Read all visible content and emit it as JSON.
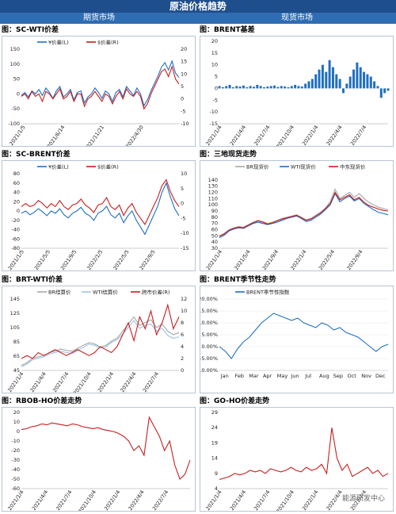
{
  "header": {
    "title": "原油价格趋势",
    "left_col": "期货市场",
    "right_col": "现货市场"
  },
  "watermark": "能源研发中心",
  "chart_data": [
    {
      "id": "sc_wti",
      "type": "line",
      "title": "图：SC-WTI价差",
      "xticks": [
        "2021/1/5",
        "2021/6/14",
        "2021/11/21",
        "2022/4/30"
      ],
      "yticks_left": [
        -100,
        -50,
        0,
        50,
        100,
        150
      ],
      "yticks_right": [
        -10,
        -5,
        0,
        5,
        10,
        15,
        20
      ],
      "ylim_left": [
        -100,
        150
      ],
      "ylim_right": [
        -10,
        20
      ],
      "series": [
        {
          "name": "¥价差(L)",
          "color": "#1f6fc1",
          "axis": "left",
          "values": [
            -5,
            5,
            -10,
            10,
            0,
            15,
            -5,
            20,
            5,
            -15,
            10,
            25,
            -10,
            0,
            15,
            -20,
            5,
            10,
            -30,
            -10,
            0,
            20,
            5,
            -15,
            10,
            0,
            -25,
            5,
            15,
            -10,
            25,
            10,
            -5,
            20,
            0,
            -40,
            -20,
            10,
            35,
            60,
            90,
            105,
            80,
            110,
            70,
            55
          ]
        },
        {
          "name": "$价差(R)",
          "color": "#c81e1e",
          "axis": "right",
          "values": [
            1,
            2,
            0,
            3,
            1,
            2,
            -1,
            3,
            2,
            0,
            2,
            4,
            0,
            1,
            3,
            -1,
            2,
            2,
            -3,
            0,
            1,
            3,
            1,
            -1,
            2,
            1,
            -2,
            1,
            3,
            0,
            4,
            2,
            1,
            3,
            1,
            -4,
            -2,
            2,
            5,
            8,
            11,
            12,
            9,
            13,
            8,
            6
          ]
        }
      ]
    },
    {
      "id": "brent_basis",
      "type": "bar",
      "title": "图：BRENT基差",
      "xticks": [
        "2021/1/4",
        "2021/4/4",
        "2021/7/4",
        "2021/10/4",
        "2022/1/4",
        "2022/4/4",
        "2022/7/4"
      ],
      "yticks": [
        -15,
        -10,
        -5,
        0,
        5,
        10,
        15,
        20
      ],
      "ylim": [
        -15,
        20
      ],
      "series": [
        {
          "name": "",
          "color": "#1f6fc1",
          "values": [
            1,
            0.5,
            1,
            1.5,
            0.5,
            1,
            0.8,
            1.2,
            0.5,
            1,
            0.7,
            1.5,
            1,
            0.5,
            0.8,
            1,
            1.2,
            0.6,
            1,
            0.8,
            0.5,
            1,
            1.5,
            1,
            0.8,
            2,
            3,
            4,
            6,
            8,
            10,
            7,
            12,
            9,
            6,
            4,
            -2,
            2,
            5,
            8,
            11,
            9,
            7,
            6,
            5,
            3,
            1,
            -4,
            -2,
            -1
          ]
        }
      ]
    },
    {
      "id": "sc_brent",
      "type": "line",
      "title": "图：SC-BRENT价差",
      "xticks": [
        "2021/1/5",
        "2021/5/5",
        "2021/9/5",
        "2022/1/5",
        "2022/5/5",
        "2022/9/5"
      ],
      "yticks_left": [
        -80,
        -60,
        -40,
        -20,
        0,
        20,
        40,
        60,
        80
      ],
      "yticks_right": [
        -15,
        -10,
        -5,
        0,
        5,
        10
      ],
      "ylim_left": [
        -80,
        80
      ],
      "ylim_right": [
        -15,
        10
      ],
      "series": [
        {
          "name": "¥价差(L)",
          "color": "#1f6fc1",
          "axis": "left",
          "values": [
            -5,
            0,
            -8,
            -3,
            5,
            -2,
            -10,
            0,
            -5,
            5,
            -8,
            -15,
            -5,
            0,
            8,
            -5,
            -10,
            -20,
            -5,
            0,
            10,
            -8,
            -15,
            -5,
            -25,
            -10,
            0,
            -20,
            -35,
            -50,
            -30,
            -10,
            10,
            40,
            60,
            30,
            5,
            -10
          ]
        },
        {
          "name": "$价差(R)",
          "color": "#c81e1e",
          "axis": "right",
          "values": [
            -1,
            0,
            -1,
            -0.5,
            1,
            0,
            -1.5,
            0,
            -1,
            1,
            -1,
            -2,
            -0.5,
            0,
            1.5,
            -0.5,
            -1.5,
            -3,
            -0.5,
            0,
            2,
            -1,
            -2,
            -0.5,
            -4,
            -1.5,
            0,
            -3,
            -5,
            -7,
            -4,
            -1,
            2,
            6,
            8,
            4,
            1,
            -1
          ]
        }
      ]
    },
    {
      "id": "three_spot",
      "type": "line",
      "title": "图：三地现货走势",
      "xticks": [
        "2021/1/4",
        "2021/5/4",
        "2021/9/4",
        "2022/1/4",
        "2022/5/4",
        "2022/9/4"
      ],
      "yticks": [
        30,
        40,
        50,
        60,
        70,
        80,
        90,
        100,
        110,
        120,
        130,
        140
      ],
      "ylim": [
        30,
        150
      ],
      "series": [
        {
          "name": "BR现货价",
          "color": "#a6a6a6",
          "values": [
            50,
            54,
            60,
            63,
            65,
            64,
            68,
            72,
            75,
            73,
            70,
            72,
            75,
            78,
            80,
            82,
            84,
            80,
            76,
            78,
            83,
            88,
            95,
            105,
            125,
            110,
            115,
            120,
            112,
            118,
            110,
            104,
            100,
            96,
            94,
            92
          ]
        },
        {
          "name": "WTI现货价",
          "color": "#1f6fc1",
          "values": [
            47,
            51,
            58,
            61,
            63,
            62,
            66,
            70,
            72,
            70,
            68,
            70,
            72,
            75,
            78,
            80,
            82,
            78,
            73,
            75,
            80,
            85,
            92,
            100,
            118,
            105,
            110,
            114,
            106,
            110,
            102,
            97,
            92,
            88,
            86,
            84
          ]
        },
        {
          "name": "中东现货价",
          "color": "#c81e1e",
          "values": [
            49,
            53,
            59,
            62,
            64,
            63,
            67,
            71,
            74,
            72,
            69,
            71,
            74,
            77,
            79,
            81,
            83,
            79,
            75,
            77,
            82,
            87,
            94,
            102,
            120,
            108,
            112,
            116,
            108,
            112,
            104,
            99,
            96,
            93,
            91,
            90
          ]
        }
      ]
    },
    {
      "id": "brt_wti",
      "type": "line",
      "title": "图：BRT-WTI价差",
      "xticks": [
        "2021/1/4",
        "2021/4/4",
        "2021/7/4",
        "2021/10/4",
        "2022/1/4",
        "2022/4/4",
        "2022/7/4"
      ],
      "yticks_left": [
        45,
        65,
        85,
        105,
        125,
        145
      ],
      "yticks_right": [
        0,
        2,
        4,
        6,
        8,
        10,
        12
      ],
      "ylim_left": [
        45,
        145
      ],
      "ylim_right": [
        0,
        12
      ],
      "series": [
        {
          "name": "BR结算价",
          "color": "#a6a6a6",
          "axis": "left",
          "values": [
            52,
            56,
            62,
            64,
            66,
            70,
            72,
            75,
            73,
            72,
            76,
            80,
            84,
            82,
            78,
            80,
            86,
            90,
            100,
            110,
            120,
            108,
            112,
            116,
            105,
            110,
            100,
            95,
            98
          ]
        },
        {
          "name": "WTI结算价",
          "color": "#9dc3e6",
          "axis": "left",
          "values": [
            50,
            54,
            60,
            62,
            64,
            68,
            70,
            72,
            70,
            69,
            73,
            77,
            82,
            80,
            76,
            78,
            84,
            88,
            96,
            105,
            115,
            104,
            108,
            110,
            100,
            104,
            94,
            90,
            92
          ]
        },
        {
          "name": "跨市价差(R)",
          "color": "#c81e1e",
          "axis": "right",
          "values": [
            2,
            2.5,
            2,
            3,
            2.5,
            3,
            3.5,
            3,
            2.5,
            3,
            3.5,
            3,
            2.5,
            3,
            4,
            3.5,
            3,
            4,
            6,
            8,
            5,
            9,
            7,
            10,
            6,
            8,
            11,
            7,
            9
          ]
        }
      ]
    },
    {
      "id": "brent_season",
      "type": "line",
      "title": "图：BRENT季节性走势",
      "xticks": [
        "Jan",
        "Feb",
        "Mar",
        "Apr",
        "May",
        "Jun",
        "Jul",
        "Aug",
        "Sep",
        "Oct",
        "Nov",
        "Dec"
      ],
      "yticks": [
        "-10.00%",
        "-5.00%",
        "0.00%",
        "5.00%",
        "10.00%",
        "15.00%",
        "20.00%"
      ],
      "ylim": [
        -10,
        20
      ],
      "series": [
        {
          "name": "BRENT季节性指数",
          "color": "#1f6fc1",
          "values": [
            0,
            -2,
            -5,
            -1,
            2,
            4,
            7,
            10,
            12,
            14,
            13,
            12,
            11,
            12,
            10,
            9,
            8,
            10,
            9,
            7,
            8,
            6,
            5,
            4,
            2,
            0,
            -2,
            0,
            1
          ]
        }
      ]
    },
    {
      "id": "rbob_ho",
      "type": "line",
      "title": "图：RBOB-HO价差走势",
      "xticks": [
        "2021/1/4",
        "2021/4/4",
        "2021/7/4",
        "2021/10/4",
        "2022/1/4",
        "2022/4/4",
        "2022/7/4"
      ],
      "yticks": [
        -60,
        -50,
        -40,
        -30,
        -20,
        -10,
        0,
        10,
        20
      ],
      "ylim": [
        -60,
        20
      ],
      "series": [
        {
          "name": "",
          "color": "#c81e1e",
          "values": [
            2,
            3,
            5,
            6,
            8,
            7,
            9,
            8,
            7,
            6,
            8,
            7,
            5,
            4,
            3,
            4,
            2,
            1,
            0,
            -2,
            -5,
            -10,
            -20,
            -15,
            -25,
            15,
            5,
            -5,
            -20,
            -10,
            -35,
            -50,
            -45,
            -30
          ]
        }
      ]
    },
    {
      "id": "go_ho",
      "type": "line",
      "title": "图：GO-HO价差走势",
      "xticks": [
        "2021/1/4",
        "2021/4/4",
        "2021/7/4",
        "2021/10/4",
        "2022/1/4",
        "2022/4/4",
        "2022/7/4"
      ],
      "yticks": [
        4,
        9,
        14,
        19,
        24,
        29
      ],
      "ylim": [
        4,
        29
      ],
      "series": [
        {
          "name": "",
          "color": "#c81e1e",
          "values": [
            7,
            7.5,
            8,
            9,
            8.5,
            9,
            10,
            9.5,
            10,
            9,
            10.5,
            10,
            9.5,
            10,
            11,
            10,
            9.5,
            11,
            10,
            10.5,
            12,
            9,
            24,
            14,
            10,
            12,
            8,
            9,
            10,
            11,
            9,
            10,
            8,
            9
          ]
        }
      ]
    }
  ]
}
